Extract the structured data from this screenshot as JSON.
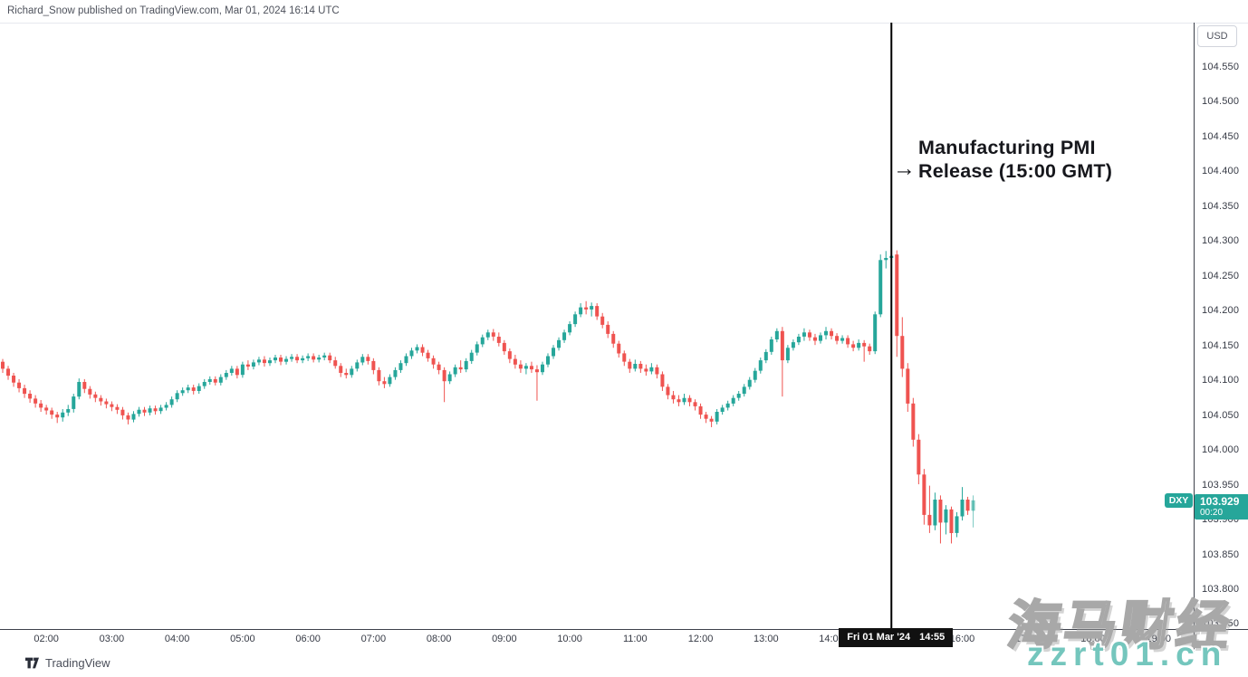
{
  "header": {
    "attribution": "Richard_Snow published on TradingView.com, Mar 01, 2024 16:14 UTC"
  },
  "colors": {
    "up": "#26a69a",
    "down": "#ef5350",
    "event_line": "#000000",
    "axis_border": "#3d414b",
    "axis_text": "#363a45",
    "label_bg": "#26a69a",
    "badge_bg": "#111111",
    "watermark_teal": "#74c6bd"
  },
  "annotation": {
    "arrow": "→",
    "line1": "Manufacturing PMI",
    "line2": "Release (15:00 GMT)"
  },
  "symbol_label": {
    "name": "DXY",
    "price": "103.929",
    "countdown": "00:20"
  },
  "price_axis": {
    "currency": "USD",
    "ticks": [
      "104.550",
      "104.500",
      "104.450",
      "104.400",
      "104.350",
      "104.300",
      "104.250",
      "104.200",
      "104.150",
      "104.100",
      "104.050",
      "104.000",
      "103.950",
      "103.900",
      "103.850",
      "103.800",
      "103.750"
    ]
  },
  "time_axis": {
    "ticks": [
      "02:00",
      "03:00",
      "04:00",
      "05:00",
      "06:00",
      "07:00",
      "08:00",
      "09:00",
      "10:00",
      "11:00",
      "12:00",
      "13:00",
      "14:00",
      "15:00",
      "16:00",
      "17:00",
      "18:00",
      "19:00"
    ],
    "event_date": "Fri 01 Mar '24",
    "event_time": "14:55"
  },
  "footer": {
    "brand": "TradingView"
  },
  "watermark": {
    "cjk": "海马财经",
    "latin": "zzrt01.cn"
  },
  "chart_data": {
    "type": "candlestick",
    "symbol": "DXY",
    "currency": "USD",
    "interval": "5m",
    "date": "Fri 01 Mar '24",
    "start_time": "01:20",
    "last_price": 103.929,
    "countdown": "00:20",
    "visible_price_range": [
      103.75,
      104.585
    ],
    "event": {
      "index": 163,
      "time": "14:55",
      "label": "Manufacturing PMI Release (15:00 GMT)"
    },
    "ohlc_format": [
      "open",
      "high",
      "low",
      "close"
    ],
    "ohlc": [
      [
        104.128,
        104.132,
        104.112,
        104.118
      ],
      [
        104.118,
        104.122,
        104.102,
        104.108
      ],
      [
        104.108,
        104.112,
        104.092,
        104.098
      ],
      [
        104.098,
        104.103,
        104.084,
        104.09
      ],
      [
        104.09,
        104.095,
        104.076,
        104.082
      ],
      [
        104.082,
        104.087,
        104.069,
        104.075
      ],
      [
        104.075,
        104.08,
        104.062,
        104.068
      ],
      [
        104.068,
        104.073,
        104.056,
        104.062
      ],
      [
        104.062,
        104.066,
        104.052,
        104.058
      ],
      [
        104.058,
        104.062,
        104.046,
        104.052
      ],
      [
        104.052,
        104.056,
        104.04,
        104.048
      ],
      [
        104.048,
        104.06,
        104.042,
        104.055
      ],
      [
        104.055,
        104.066,
        104.05,
        104.06
      ],
      [
        104.06,
        104.082,
        104.055,
        104.078
      ],
      [
        104.078,
        104.104,
        104.074,
        104.099
      ],
      [
        104.099,
        104.103,
        104.083,
        104.089
      ],
      [
        104.089,
        104.093,
        104.075,
        104.081
      ],
      [
        104.081,
        104.085,
        104.07,
        104.076
      ],
      [
        104.076,
        104.08,
        104.065,
        104.071
      ],
      [
        104.071,
        104.075,
        104.061,
        104.067
      ],
      [
        104.067,
        104.071,
        104.057,
        104.063
      ],
      [
        104.063,
        104.067,
        104.053,
        104.059
      ],
      [
        104.059,
        104.063,
        104.045,
        104.051
      ],
      [
        104.051,
        104.055,
        104.038,
        104.045
      ],
      [
        104.045,
        104.057,
        104.041,
        104.053
      ],
      [
        104.053,
        104.063,
        104.049,
        104.059
      ],
      [
        104.059,
        104.063,
        104.05,
        104.055
      ],
      [
        104.055,
        104.065,
        104.051,
        104.061
      ],
      [
        104.061,
        104.065,
        104.052,
        104.057
      ],
      [
        104.057,
        104.066,
        104.053,
        104.062
      ],
      [
        104.062,
        104.07,
        104.058,
        104.066
      ],
      [
        104.066,
        104.078,
        104.062,
        104.074
      ],
      [
        104.074,
        104.087,
        104.07,
        104.083
      ],
      [
        104.083,
        104.091,
        104.079,
        104.087
      ],
      [
        104.087,
        104.095,
        104.083,
        104.091
      ],
      [
        104.091,
        104.095,
        104.081,
        104.086
      ],
      [
        104.086,
        104.097,
        104.082,
        104.093
      ],
      [
        104.093,
        104.103,
        104.089,
        104.099
      ],
      [
        104.099,
        104.107,
        104.095,
        104.103
      ],
      [
        104.103,
        104.107,
        104.094,
        104.098
      ],
      [
        104.098,
        104.11,
        104.094,
        104.106
      ],
      [
        104.106,
        104.116,
        104.102,
        104.112
      ],
      [
        104.112,
        104.122,
        104.108,
        104.118
      ],
      [
        104.118,
        104.122,
        104.104,
        104.109
      ],
      [
        104.109,
        104.128,
        104.105,
        104.124
      ],
      [
        104.124,
        104.13,
        104.116,
        104.121
      ],
      [
        104.121,
        104.131,
        104.117,
        104.127
      ],
      [
        104.127,
        104.135,
        104.123,
        104.131
      ],
      [
        104.131,
        104.136,
        104.121,
        104.126
      ],
      [
        104.126,
        104.134,
        104.122,
        104.13
      ],
      [
        104.13,
        104.138,
        104.126,
        104.134
      ],
      [
        104.134,
        104.138,
        104.123,
        104.128
      ],
      [
        104.128,
        104.136,
        104.124,
        104.132
      ],
      [
        104.132,
        104.139,
        104.128,
        104.135
      ],
      [
        104.135,
        104.139,
        104.126,
        104.13
      ],
      [
        104.13,
        104.137,
        104.126,
        104.133
      ],
      [
        104.133,
        104.14,
        104.129,
        104.136
      ],
      [
        104.136,
        104.14,
        104.127,
        104.131
      ],
      [
        104.131,
        104.138,
        104.127,
        104.134
      ],
      [
        104.134,
        104.141,
        104.13,
        104.137
      ],
      [
        104.137,
        104.141,
        104.126,
        104.13
      ],
      [
        104.13,
        104.135,
        104.118,
        104.122
      ],
      [
        104.122,
        104.126,
        104.106,
        104.112
      ],
      [
        104.112,
        104.118,
        104.104,
        104.109
      ],
      [
        104.109,
        104.122,
        104.105,
        104.118
      ],
      [
        104.118,
        104.131,
        104.114,
        104.127
      ],
      [
        104.127,
        104.139,
        104.123,
        104.135
      ],
      [
        104.135,
        104.139,
        104.124,
        104.129
      ],
      [
        104.129,
        104.133,
        104.11,
        104.116
      ],
      [
        104.116,
        104.12,
        104.094,
        104.1
      ],
      [
        104.1,
        104.106,
        104.09,
        104.096
      ],
      [
        104.096,
        104.11,
        104.092,
        104.106
      ],
      [
        104.106,
        104.12,
        104.102,
        104.116
      ],
      [
        104.116,
        104.13,
        104.112,
        104.126
      ],
      [
        104.126,
        104.14,
        104.122,
        104.136
      ],
      [
        104.136,
        104.148,
        104.132,
        104.144
      ],
      [
        104.144,
        104.153,
        104.14,
        104.149
      ],
      [
        104.149,
        104.153,
        104.136,
        104.141
      ],
      [
        104.141,
        104.145,
        104.128,
        104.133
      ],
      [
        104.133,
        104.137,
        104.118,
        104.124
      ],
      [
        104.124,
        104.128,
        104.11,
        104.116
      ],
      [
        104.116,
        104.12,
        104.07,
        104.1
      ],
      [
        104.1,
        104.114,
        104.096,
        104.11
      ],
      [
        104.11,
        104.124,
        104.106,
        104.12
      ],
      [
        104.12,
        104.13,
        104.112,
        104.117
      ],
      [
        104.117,
        104.133,
        104.113,
        104.129
      ],
      [
        104.129,
        104.145,
        104.125,
        104.141
      ],
      [
        104.141,
        104.157,
        104.137,
        104.153
      ],
      [
        104.153,
        104.167,
        104.149,
        104.163
      ],
      [
        104.163,
        104.174,
        104.159,
        104.17
      ],
      [
        104.17,
        104.175,
        104.158,
        104.164
      ],
      [
        104.164,
        104.17,
        104.15,
        104.155
      ],
      [
        104.155,
        104.159,
        104.138,
        104.143
      ],
      [
        104.143,
        104.147,
        104.126,
        104.132
      ],
      [
        104.132,
        104.138,
        104.118,
        104.124
      ],
      [
        104.124,
        104.13,
        104.112,
        104.118
      ],
      [
        104.118,
        104.126,
        104.11,
        104.122
      ],
      [
        104.122,
        104.128,
        104.112,
        104.117
      ],
      [
        104.117,
        104.123,
        104.072,
        104.113
      ],
      [
        104.113,
        104.128,
        104.109,
        104.124
      ],
      [
        104.124,
        104.14,
        104.12,
        104.136
      ],
      [
        104.136,
        104.152,
        104.132,
        104.148
      ],
      [
        104.148,
        104.163,
        104.144,
        104.159
      ],
      [
        104.159,
        104.174,
        104.155,
        104.17
      ],
      [
        104.17,
        104.186,
        104.166,
        104.182
      ],
      [
        104.182,
        104.2,
        104.178,
        104.196
      ],
      [
        104.196,
        104.212,
        104.192,
        104.206
      ],
      [
        104.206,
        104.215,
        104.196,
        104.203
      ],
      [
        104.203,
        104.213,
        104.193,
        104.208
      ],
      [
        104.208,
        104.212,
        104.188,
        104.193
      ],
      [
        104.193,
        104.198,
        104.176,
        104.181
      ],
      [
        104.181,
        104.186,
        104.162,
        104.168
      ],
      [
        104.168,
        104.172,
        104.148,
        104.154
      ],
      [
        104.154,
        104.158,
        104.134,
        104.14
      ],
      [
        104.14,
        104.144,
        104.122,
        104.128
      ],
      [
        104.128,
        104.132,
        104.112,
        104.118
      ],
      [
        104.118,
        104.131,
        104.114,
        104.125
      ],
      [
        104.125,
        104.129,
        104.112,
        104.118
      ],
      [
        104.118,
        104.124,
        104.108,
        104.114
      ],
      [
        104.114,
        104.126,
        104.11,
        104.12
      ],
      [
        104.12,
        104.124,
        104.104,
        104.11
      ],
      [
        104.11,
        104.114,
        104.086,
        104.092
      ],
      [
        104.092,
        104.096,
        104.074,
        104.08
      ],
      [
        104.08,
        104.086,
        104.068,
        104.074
      ],
      [
        104.074,
        104.08,
        104.064,
        104.07
      ],
      [
        104.07,
        104.082,
        104.066,
        104.076
      ],
      [
        104.076,
        104.08,
        104.064,
        104.07
      ],
      [
        104.07,
        104.074,
        104.058,
        104.064
      ],
      [
        104.064,
        104.068,
        104.046,
        104.052
      ],
      [
        104.052,
        104.056,
        104.04,
        104.046
      ],
      [
        104.046,
        104.05,
        104.034,
        104.042
      ],
      [
        104.042,
        104.06,
        104.038,
        104.056
      ],
      [
        104.056,
        104.066,
        104.052,
        104.062
      ],
      [
        104.062,
        104.072,
        104.058,
        104.068
      ],
      [
        104.068,
        104.08,
        104.064,
        104.076
      ],
      [
        104.076,
        104.086,
        104.072,
        104.082
      ],
      [
        104.082,
        104.096,
        104.078,
        104.092
      ],
      [
        104.092,
        104.106,
        104.088,
        104.102
      ],
      [
        104.102,
        104.119,
        104.098,
        104.115
      ],
      [
        104.115,
        104.134,
        104.111,
        104.13
      ],
      [
        104.13,
        104.146,
        104.126,
        104.142
      ],
      [
        104.142,
        104.164,
        104.138,
        104.16
      ],
      [
        104.16,
        104.176,
        104.156,
        104.172
      ],
      [
        104.172,
        104.178,
        104.078,
        104.13
      ],
      [
        104.13,
        104.152,
        104.126,
        104.148
      ],
      [
        104.148,
        104.16,
        104.144,
        104.156
      ],
      [
        104.156,
        104.168,
        104.152,
        104.164
      ],
      [
        104.164,
        104.176,
        104.158,
        104.17
      ],
      [
        104.17,
        104.174,
        104.158,
        104.163
      ],
      [
        104.163,
        104.168,
        104.152,
        104.158
      ],
      [
        104.158,
        104.17,
        104.154,
        104.166
      ],
      [
        104.166,
        104.178,
        104.16,
        104.172
      ],
      [
        104.172,
        104.176,
        104.16,
        104.165
      ],
      [
        104.165,
        104.169,
        104.153,
        104.158
      ],
      [
        104.158,
        104.166,
        104.154,
        104.162
      ],
      [
        104.162,
        104.166,
        104.148,
        104.153
      ],
      [
        104.153,
        104.158,
        104.143,
        104.148
      ],
      [
        104.148,
        104.16,
        104.144,
        104.155
      ],
      [
        104.155,
        104.159,
        104.128,
        104.15
      ],
      [
        104.15,
        104.154,
        104.138,
        104.143
      ],
      [
        104.143,
        104.2,
        104.139,
        104.196
      ],
      [
        104.196,
        104.282,
        104.192,
        104.274
      ],
      [
        104.274,
        104.287,
        104.262,
        104.277
      ],
      [
        104.277,
        104.286,
        104.265,
        104.28
      ],
      [
        104.282,
        104.288,
        104.135,
        104.165
      ],
      [
        104.165,
        104.192,
        104.106,
        104.118
      ],
      [
        104.118,
        104.126,
        104.056,
        104.068
      ],
      [
        104.068,
        104.076,
        104.006,
        104.016
      ],
      [
        104.016,
        104.024,
        103.952,
        103.966
      ],
      [
        103.966,
        103.974,
        103.894,
        103.908
      ],
      [
        103.908,
        103.95,
        103.882,
        103.893
      ],
      [
        103.893,
        103.94,
        103.886,
        103.93
      ],
      [
        103.93,
        103.936,
        103.867,
        103.897
      ],
      [
        103.897,
        103.922,
        103.88,
        103.916
      ],
      [
        103.916,
        103.92,
        103.867,
        103.882
      ],
      [
        103.882,
        103.912,
        103.876,
        103.906
      ],
      [
        103.906,
        103.948,
        103.9,
        103.93
      ],
      [
        103.93,
        103.934,
        103.908,
        103.914
      ],
      [
        103.914,
        103.936,
        103.89,
        103.929
      ]
    ]
  }
}
